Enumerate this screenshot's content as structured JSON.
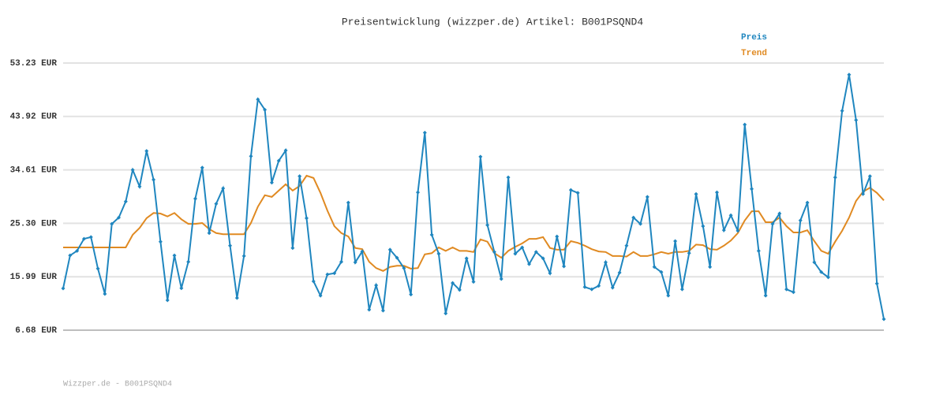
{
  "chart_data": {
    "type": "line",
    "title": "Preisentwicklung (wizzper.de) Artikel: B001PSQND4",
    "footer": "Wizzper.de - B001PSQND4",
    "ylim": [
      6.68,
      53.23
    ],
    "yticks": [
      {
        "value": 6.68,
        "label": "6.68 EUR"
      },
      {
        "value": 15.99,
        "label": "15.99 EUR"
      },
      {
        "value": 25.3,
        "label": "25.30 EUR"
      },
      {
        "value": 34.61,
        "label": "34.61 EUR"
      },
      {
        "value": 43.92,
        "label": "43.92 EUR"
      },
      {
        "value": 53.23,
        "label": "53.23 EUR"
      }
    ],
    "grid": true,
    "legend": "top-right",
    "series": [
      {
        "name": "Preis",
        "color": "#1f86bf",
        "markers": true,
        "values": [
          13.96,
          19.7,
          20.5,
          22.6,
          22.9,
          17.4,
          13.0,
          25.2,
          26.3,
          29.1,
          34.6,
          31.7,
          37.9,
          32.9,
          22.1,
          11.9,
          19.7,
          14.0,
          18.6,
          29.6,
          35.0,
          23.6,
          28.7,
          31.4,
          21.4,
          12.3,
          19.6,
          37.0,
          46.9,
          45.1,
          32.4,
          36.2,
          38.0,
          21.0,
          33.5,
          26.2,
          15.2,
          12.7,
          16.4,
          16.6,
          18.6,
          28.9,
          18.5,
          20.4,
          10.25,
          14.5,
          10.1,
          20.7,
          19.3,
          17.5,
          12.9,
          30.7,
          41.1,
          23.3,
          20.0,
          9.6,
          14.9,
          13.7,
          19.2,
          15.1,
          36.9,
          25.0,
          20.3,
          15.6,
          33.3,
          20.0,
          21.1,
          18.2,
          20.3,
          19.2,
          16.6,
          23.0,
          17.8,
          31.1,
          30.6,
          14.2,
          13.8,
          14.4,
          18.5,
          14.1,
          16.7,
          21.4,
          26.3,
          25.2,
          29.9,
          17.7,
          16.8,
          12.7,
          22.2,
          13.8,
          20.1,
          30.4,
          24.8,
          17.7,
          30.7,
          24.1,
          26.7,
          24.0,
          42.5,
          31.3,
          20.5,
          12.7,
          25.2,
          27.0,
          13.8,
          13.3,
          25.8,
          28.9,
          18.5,
          16.8,
          15.9,
          33.3,
          44.9,
          51.2,
          43.3,
          30.4,
          33.5,
          14.8,
          8.6
        ]
      },
      {
        "name": "Trend",
        "color": "#e08a22",
        "markers": false,
        "values": [
          21.1,
          21.1,
          21.1,
          21.1,
          21.1,
          21.1,
          21.1,
          21.1,
          21.1,
          21.1,
          23.3,
          24.5,
          26.2,
          27.1,
          27.0,
          26.5,
          27.1,
          26.0,
          25.2,
          25.2,
          25.35,
          24.3,
          23.6,
          23.4,
          23.4,
          23.4,
          23.4,
          25.35,
          28.2,
          30.2,
          29.9,
          31.0,
          32.1,
          31.0,
          31.8,
          33.6,
          33.2,
          30.6,
          27.5,
          24.8,
          23.6,
          23.0,
          21.0,
          20.8,
          18.6,
          17.5,
          17.0,
          17.7,
          17.9,
          17.9,
          17.4,
          17.5,
          19.9,
          20.1,
          21.1,
          20.5,
          21.1,
          20.5,
          20.5,
          20.3,
          22.5,
          22.1,
          20.1,
          19.3,
          20.5,
          21.2,
          21.8,
          22.6,
          22.6,
          22.9,
          21.0,
          20.7,
          20.7,
          22.2,
          21.9,
          21.4,
          20.8,
          20.4,
          20.3,
          19.6,
          19.6,
          19.5,
          20.3,
          19.6,
          19.6,
          19.9,
          20.3,
          20.0,
          20.3,
          20.3,
          20.5,
          21.6,
          21.5,
          20.8,
          20.7,
          21.4,
          22.3,
          23.6,
          25.8,
          27.4,
          27.4,
          25.5,
          25.5,
          26.3,
          24.8,
          23.7,
          23.7,
          24.1,
          22.2,
          20.5,
          20.0,
          22.1,
          24.0,
          26.3,
          29.2,
          30.8,
          31.5,
          30.6,
          29.3
        ]
      }
    ]
  }
}
